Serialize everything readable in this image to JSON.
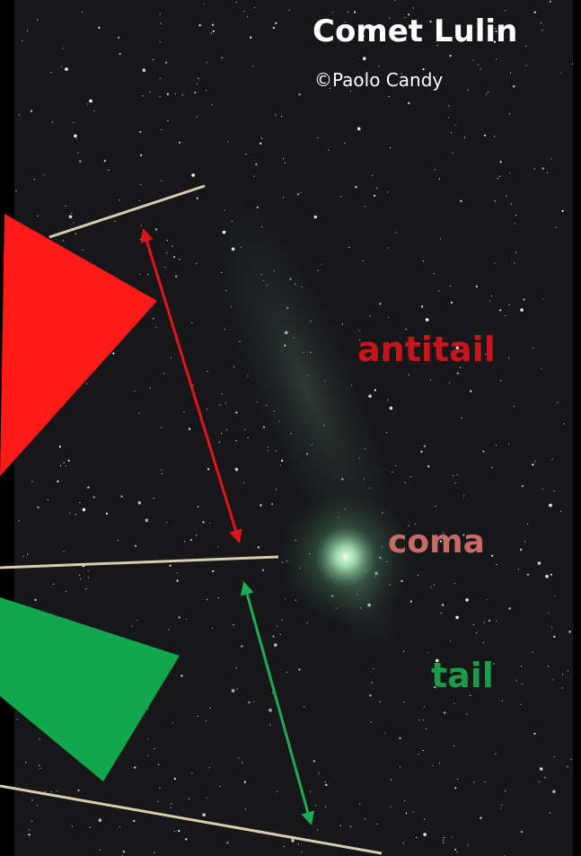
{
  "title": "Comet Lulin",
  "credit": "©Paolo Candy",
  "labels": {
    "antitail": "antitail",
    "coma": "coma",
    "tail": "tail"
  }
}
